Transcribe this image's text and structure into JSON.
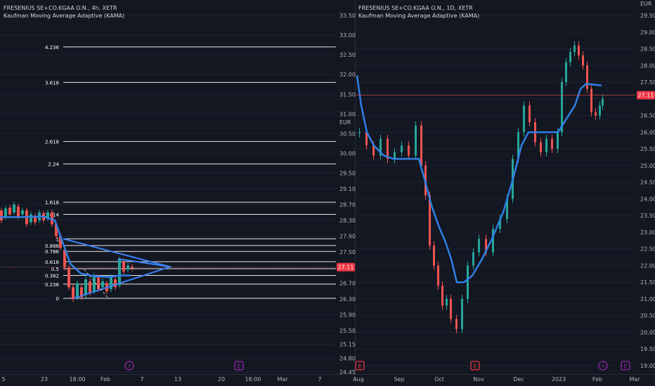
{
  "colors": {
    "background": "#131722",
    "grid": "#1f2330",
    "up": "#26a69a",
    "down": "#ef5350",
    "kama": "#2f7fe6",
    "triangle": "#3b82f6",
    "fib": "#e6e6e6",
    "price_badge": "#f23645",
    "divider": "#2a2e39",
    "event_lightning": "#9c27b0",
    "event_earnings": "#9c27b0",
    "event_dividend": "#f23645"
  },
  "chart_data": [
    {
      "type": "candlestick",
      "symbol_line": "FRESENIUS SE+CO.KGAA O.N., 4h, XETR",
      "indicator_line": "Kaufman Moving Average Adaptive (KAMA)",
      "y_axis_unit": "EUR",
      "y_ticks": [
        "33.50",
        "33.00",
        "32.50",
        "32.00",
        "31.50",
        "31.00",
        "30.50",
        "30.00",
        "29.50",
        "29.10",
        "28.70",
        "28.30",
        "27.90",
        "27.50",
        "27.11",
        "26.70",
        "26.30",
        "25.90",
        "25.50",
        "25.15",
        "24.80",
        "24.45"
      ],
      "x_ticks": [
        "5",
        "23",
        "18:00",
        "Feb",
        "7",
        "13",
        "20",
        "18:00",
        "Mar",
        "7"
      ],
      "last_price": "27.11",
      "fib_levels": [
        {
          "label": "4.236",
          "price": 32.7
        },
        {
          "label": "3.618",
          "price": 31.8
        },
        {
          "label": "2.618",
          "price": 30.3
        },
        {
          "label": "2.24",
          "price": 29.73
        },
        {
          "label": "1.618",
          "price": 28.76
        },
        {
          "label": "1.414",
          "price": 28.45
        },
        {
          "label": "1",
          "price": 27.83
        },
        {
          "label": "0.886",
          "price": 27.66
        },
        {
          "label": "0.786",
          "price": 27.51
        },
        {
          "label": "0.618",
          "price": 27.25
        },
        {
          "label": "0.5",
          "price": 27.07
        },
        {
          "label": "0.382",
          "price": 26.9
        },
        {
          "label": "0.236",
          "price": 26.68
        },
        {
          "label": "0",
          "price": 26.32
        }
      ],
      "events": [
        {
          "type": "lightning",
          "label": "⚡",
          "x_label": "Feb"
        },
        {
          "type": "earnings",
          "label": "E",
          "x_label": "20"
        }
      ]
    },
    {
      "type": "candlestick",
      "symbol_line": "FRESENIUS SE+CO.KGAA O.N., 1D, XETR",
      "indicator_line": "Kaufman Moving Average Adaptive (KAMA)",
      "y_axis_unit": "EUR",
      "y_ticks": [
        "29.50",
        "29.00",
        "28.50",
        "28.00",
        "27.50",
        "27.00",
        "26.50",
        "26.00",
        "25.50",
        "25.00",
        "24.50",
        "24.00",
        "23.50",
        "23.00",
        "22.50",
        "22.00",
        "21.50",
        "21.00",
        "20.50",
        "20.00",
        "19.50",
        "19.00"
      ],
      "x_ticks": [
        "Aug",
        "Sep",
        "Oct",
        "Nov",
        "Dec",
        "2023",
        "Feb",
        "Mar"
      ],
      "last_price": "27.11",
      "events": [
        {
          "type": "dividend",
          "label": "E",
          "x_label": "Aug"
        },
        {
          "type": "earnings",
          "label": "E",
          "x_label": "Nov"
        },
        {
          "type": "lightning",
          "label": "⚡",
          "x_label": "Feb"
        },
        {
          "type": "earnings",
          "label": "E",
          "x_label": "Feb"
        }
      ]
    }
  ]
}
